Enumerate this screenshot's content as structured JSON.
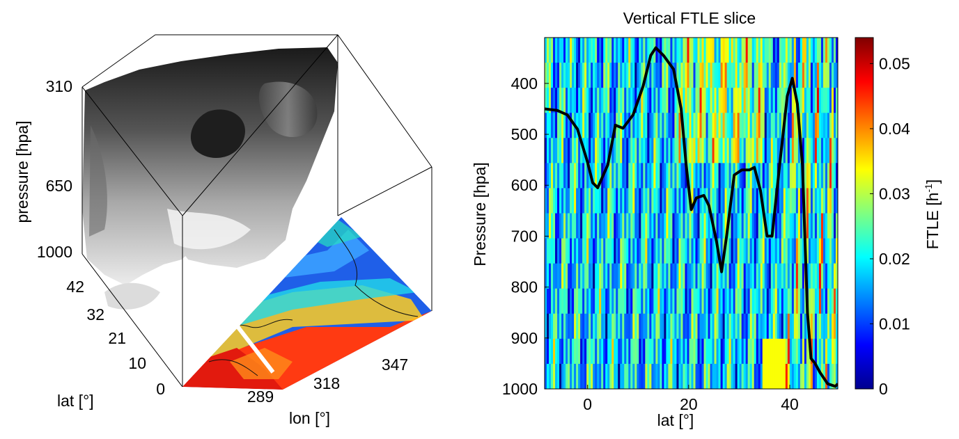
{
  "chart_data": [
    {
      "type": "3d-volume",
      "xlabel": "lon [°]",
      "ylabel": "lat [°]",
      "zlabel": "pressure [hpa]",
      "lon_ticks": [
        "289",
        "318",
        "347"
      ],
      "lat_ticks": [
        "0",
        "10",
        "21",
        "32",
        "42"
      ],
      "pressure_ticks": [
        "310",
        "650",
        "1000"
      ],
      "xlim": [
        275,
        360
      ],
      "ylim": [
        0,
        47
      ],
      "zlim": [
        310,
        1000
      ],
      "z_reversed": true,
      "base_colormap": "jet",
      "volume_colormap": "gray",
      "grid": false
    },
    {
      "type": "heatmap",
      "title": "Vertical FTLE slice",
      "xlabel": "lat [°]",
      "ylabel": "Pressure [hpa]",
      "xticks": [
        "0",
        "20",
        "40"
      ],
      "yticks": [
        "400",
        "500",
        "600",
        "700",
        "800",
        "900",
        "1000"
      ],
      "xlim": [
        -8.5,
        49.5
      ],
      "ylim": [
        310,
        1000
      ],
      "y_reversed": true,
      "colormap": "jet",
      "colorbar": {
        "label": "FTLE [h",
        "label_sup": "-1",
        "label_close": "]",
        "ticks": [
          "0",
          "0.01",
          "0.02",
          "0.03",
          "0.04",
          "0.05"
        ],
        "range": [
          0,
          0.054
        ]
      },
      "line": {
        "name": "",
        "color": "#000000",
        "x": [
          -8.5,
          -6,
          -4,
          -2,
          0,
          1,
          2,
          4,
          5.5,
          7,
          9,
          11,
          12.5,
          13.5,
          15,
          17,
          18.5,
          19.5,
          20.5,
          21.5,
          23,
          24,
          25.5,
          26.5,
          27.5,
          29,
          30.5,
          32,
          33,
          34.2,
          35.5,
          36.5,
          38,
          39.5,
          40.5,
          41.5,
          42.5,
          43.5,
          44.2,
          45,
          46,
          47.5,
          49,
          49.5
        ],
        "y": [
          450,
          453,
          462,
          490,
          555,
          595,
          605,
          560,
          482,
          488,
          462,
          405,
          345,
          330,
          345,
          372,
          450,
          560,
          648,
          625,
          620,
          640,
          710,
          770,
          700,
          580,
          570,
          570,
          565,
          610,
          700,
          700,
          560,
          425,
          390,
          440,
          560,
          850,
          940,
          950,
          968,
          990,
          995,
          990
        ]
      }
    }
  ]
}
